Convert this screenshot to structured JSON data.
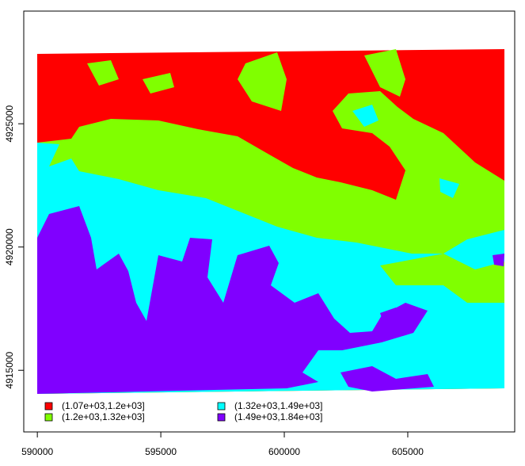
{
  "chart_data": {
    "type": "raster",
    "xlim": [
      589450,
      609330
    ],
    "ylim": [
      4912500,
      4929570
    ],
    "xticks": [
      590000,
      595000,
      600000,
      605000
    ],
    "yticks": [
      4915000,
      4920000,
      4925000
    ],
    "legend": [
      {
        "label": "(1.07e+03,1.2e+03]",
        "color": "#ff0000"
      },
      {
        "label": "(1.2e+03,1.32e+03]",
        "color": "#80ff00"
      },
      {
        "label": "(1.32e+03,1.49e+03]",
        "color": "#00ffff"
      },
      {
        "label": "(1.49e+03,1.84e+03]",
        "color": "#8000ff"
      }
    ]
  }
}
